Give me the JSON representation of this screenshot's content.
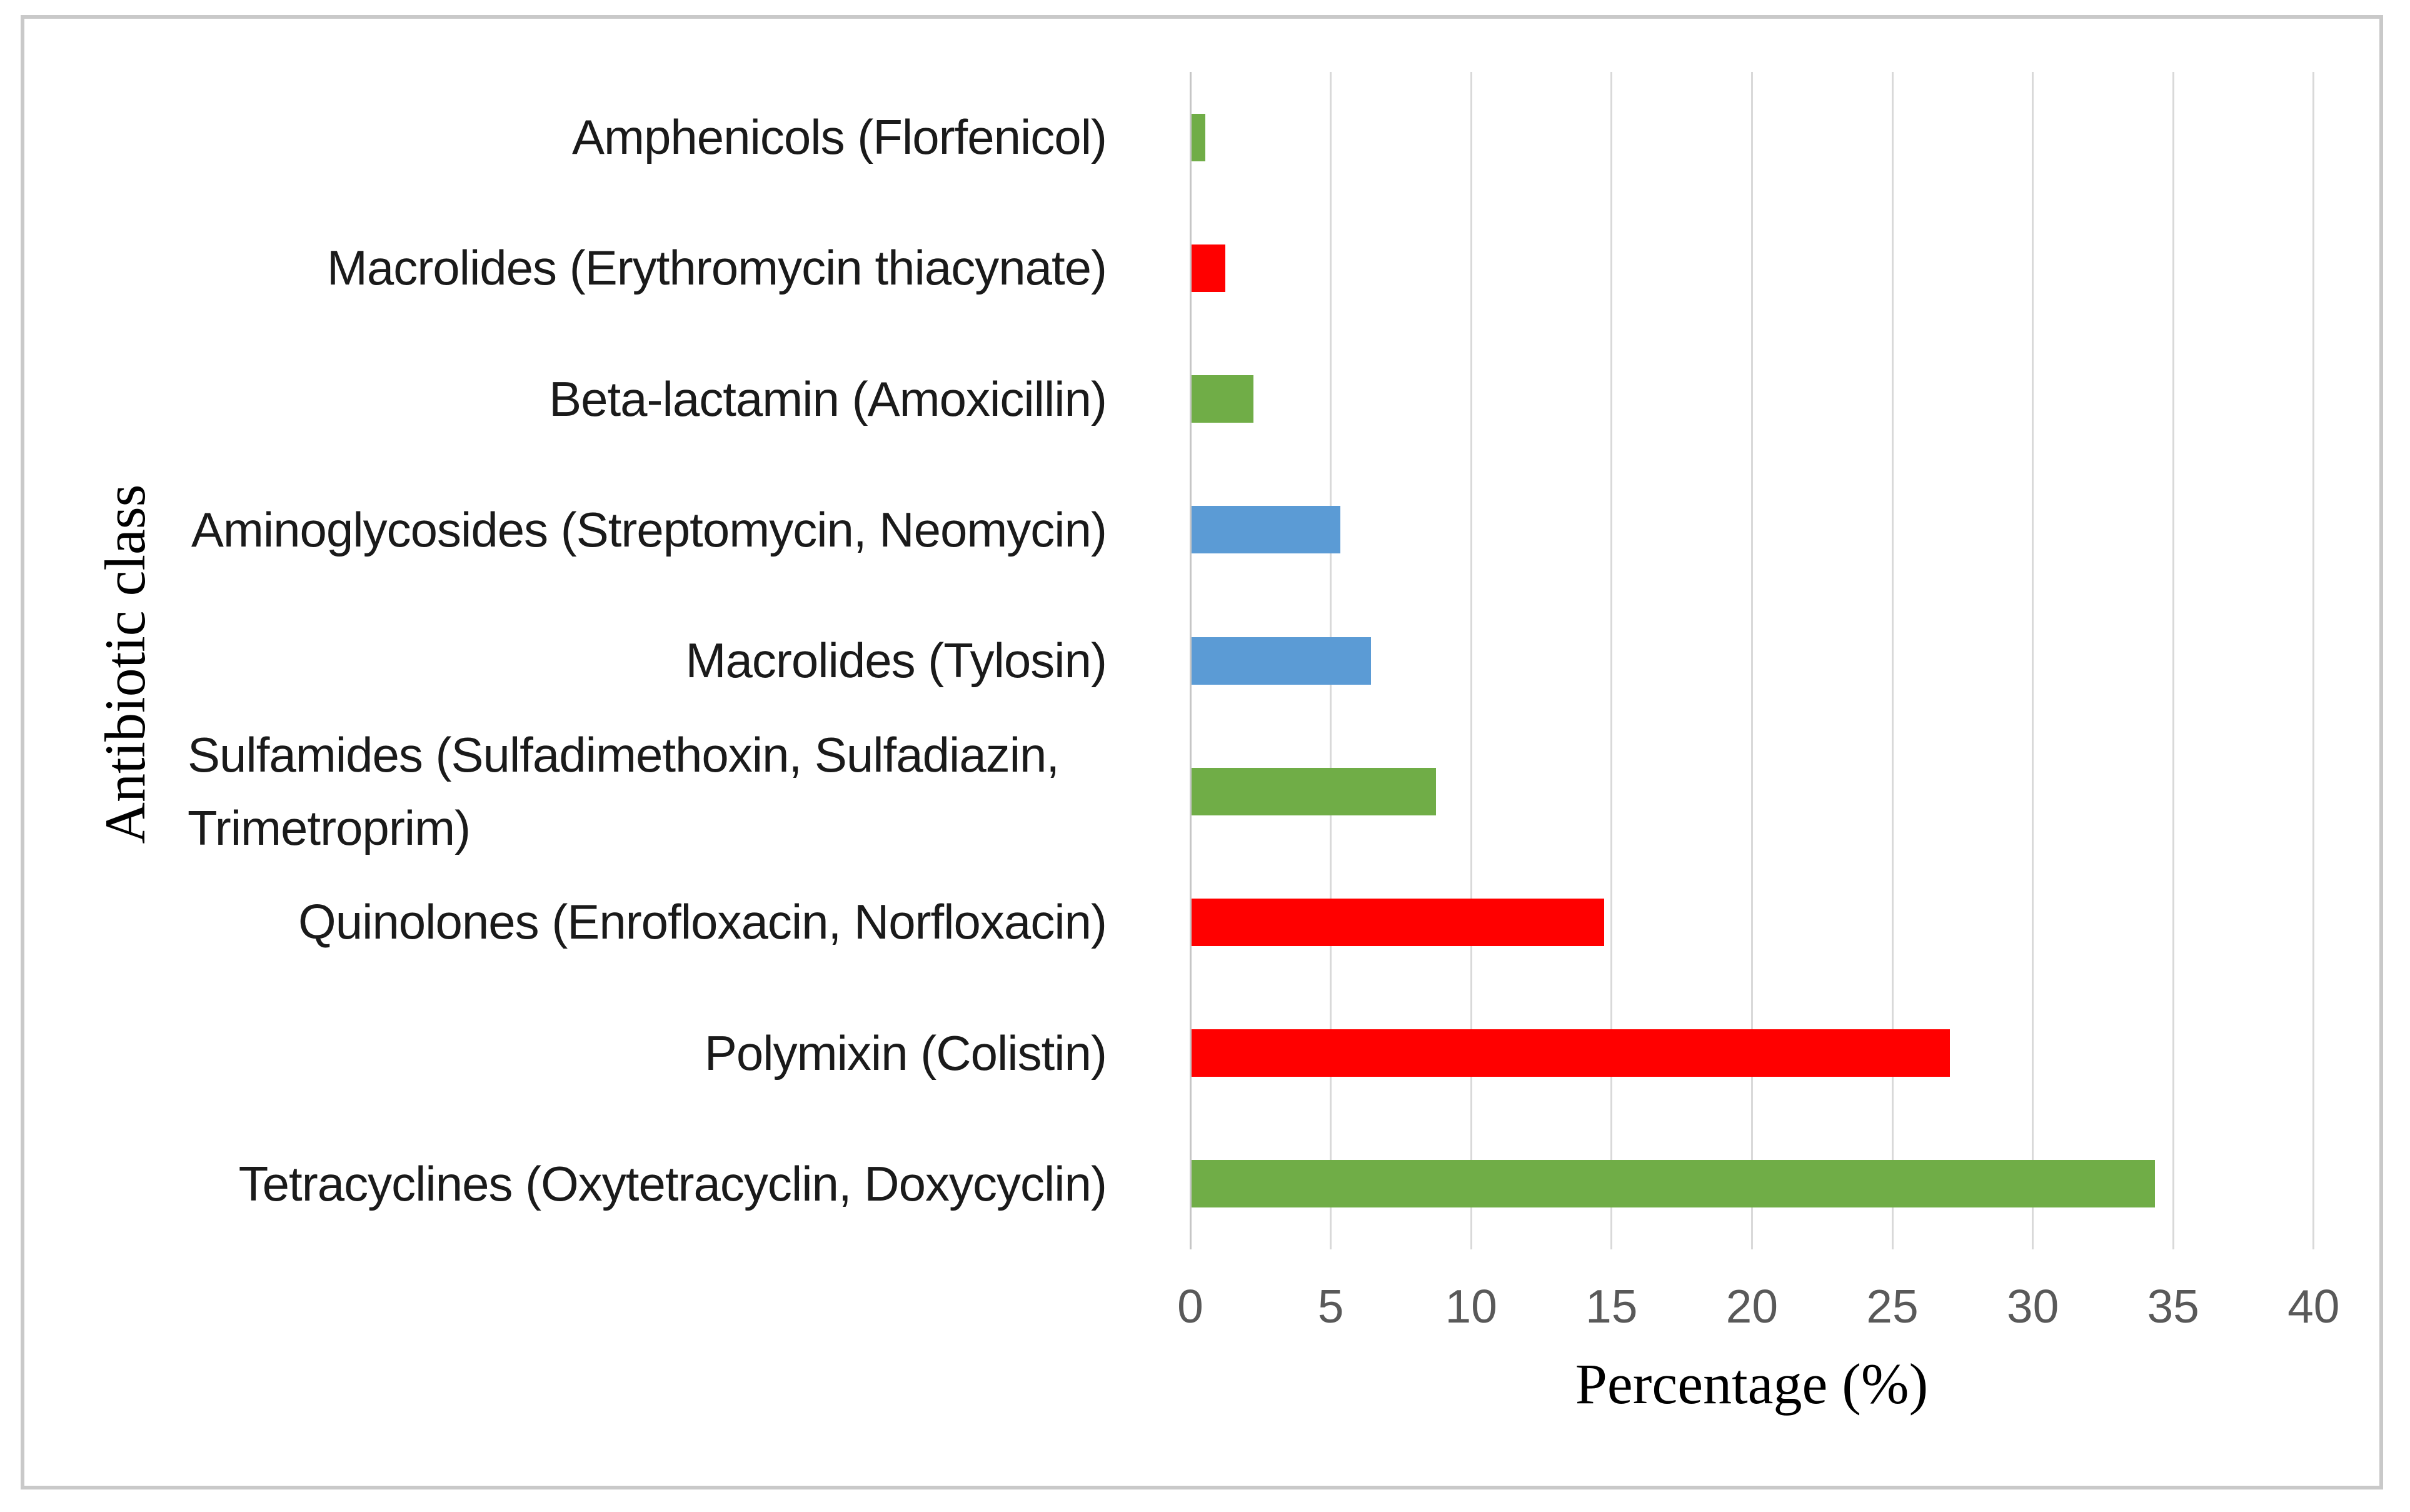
{
  "figure": {
    "background_color": "#ffffff",
    "border_color": "#c9c9c9",
    "gridline_color": "#d9d9d9",
    "axis_line_color": "#c6c6c6",
    "tick_label_color": "#595959",
    "category_label_color": "#1a1a1a"
  },
  "chart_data": {
    "type": "bar",
    "orientation": "horizontal",
    "title": "",
    "xlabel": "Percentage (%)",
    "ylabel": "Antibiotic class",
    "xlim": [
      0,
      40
    ],
    "xticks": [
      "0",
      "5",
      "10",
      "15",
      "20",
      "25",
      "30",
      "35",
      "40"
    ],
    "grid": true,
    "legend": "none",
    "palette": {
      "green": "#70AD47",
      "red": "#FF0000",
      "blue": "#5B9BD5"
    },
    "categories": [
      "Amphenicols (Florfenicol)",
      "Macrolides (Erythromycin thiacynate)",
      "Beta-lactamin (Amoxicillin)",
      "Aminoglycosides (Streptomycin, Neomycin)",
      "Macrolides (Tylosin)",
      "Sulfamides (Sulfadimethoxin, Sulfadiazin, Trimetroprim)",
      "Quinolones (Enrofloxacin, Norfloxacin)",
      "Polymixin (Colistin)",
      "Tetracyclines (Oxytetracyclin, Doxycyclin)"
    ],
    "values": [
      0.5,
      1.2,
      2.2,
      5.3,
      6.4,
      8.7,
      14.7,
      27.0,
      34.3
    ],
    "bar_colors": [
      "green",
      "red",
      "green",
      "blue",
      "blue",
      "green",
      "red",
      "red",
      "green"
    ],
    "items": [
      {
        "lines": [
          "Amphenicols (Florfenicol)"
        ],
        "value": 0.5,
        "color": "green",
        "align": "right"
      },
      {
        "lines": [
          "Macrolides (Erythromycin thiacynate)"
        ],
        "value": 1.2,
        "color": "red",
        "align": "right"
      },
      {
        "lines": [
          "Beta-lactamin (Amoxicillin)"
        ],
        "value": 2.2,
        "color": "green",
        "align": "right"
      },
      {
        "lines": [
          "Aminoglycosides (Streptomycin, Neomycin)"
        ],
        "value": 5.3,
        "color": "blue",
        "align": "right"
      },
      {
        "lines": [
          "Macrolides (Tylosin)"
        ],
        "value": 6.4,
        "color": "blue",
        "align": "right"
      },
      {
        "lines": [
          "Sulfamides (Sulfadimethoxin, Sulfadiazin,",
          "Trimetroprim)"
        ],
        "value": 8.7,
        "color": "green",
        "align": "left"
      },
      {
        "lines": [
          "Quinolones (Enrofloxacin, Norfloxacin)"
        ],
        "value": 14.7,
        "color": "red",
        "align": "right"
      },
      {
        "lines": [
          "Polymixin (Colistin)"
        ],
        "value": 27.0,
        "color": "red",
        "align": "right"
      },
      {
        "lines": [
          "Tetracyclines (Oxytetracyclin, Doxycyclin)"
        ],
        "value": 34.3,
        "color": "green",
        "align": "right"
      }
    ]
  }
}
